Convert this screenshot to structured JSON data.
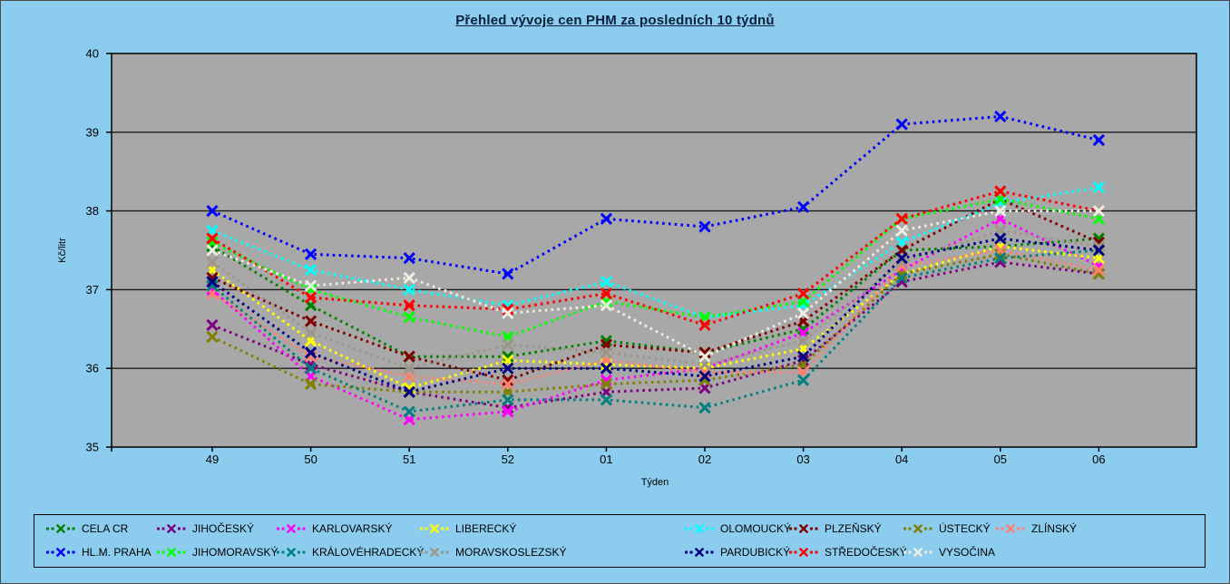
{
  "window": {
    "page_background": "#8CCDEF",
    "frame_color": "#4a4a4a"
  },
  "chart_data": {
    "type": "line",
    "title": "Přehled vývoje cen PHM za posledních 10 týdnů",
    "xlabel": "Týden",
    "ylabel": "Kč/litr",
    "ylim": [
      35,
      40
    ],
    "y_ticks": [
      35,
      36,
      37,
      38,
      39,
      40
    ],
    "x_categories": [
      "49",
      "50",
      "51",
      "52",
      "01",
      "02",
      "03",
      "04",
      "05",
      "06"
    ],
    "grid": true,
    "line_style": "dotted",
    "marker": "x",
    "legend_position": "bottom",
    "plot_background": "#A8A8A8",
    "grid_color": "#1a1a1a",
    "axis_color": "#000000",
    "title_color": "#0a1f3c",
    "text_color": "#000000",
    "series": [
      {
        "name": "CELA CR",
        "color": "#008200",
        "values": [
          37.55,
          36.8,
          36.15,
          36.15,
          36.35,
          36.2,
          36.5,
          37.5,
          37.55,
          37.65
        ]
      },
      {
        "name": "JIHOČESKÝ",
        "color": "#800080",
        "values": [
          36.55,
          36.05,
          35.7,
          35.5,
          35.7,
          35.75,
          36.1,
          37.1,
          37.35,
          37.2
        ]
      },
      {
        "name": "KARLOVARSKÝ",
        "color": "#FF00FF",
        "values": [
          37.0,
          35.9,
          35.35,
          35.45,
          35.85,
          36.0,
          36.45,
          37.25,
          37.9,
          37.3
        ]
      },
      {
        "name": "LIBERECKÝ",
        "color": "#FFFF00",
        "values": [
          37.25,
          36.35,
          35.75,
          36.1,
          36.05,
          36.0,
          36.25,
          37.2,
          37.55,
          37.4
        ]
      },
      {
        "name": "OLOMOUCKÝ",
        "color": "#00FFFF",
        "values": [
          37.75,
          37.25,
          37.0,
          36.8,
          37.1,
          36.65,
          36.8,
          37.6,
          38.1,
          38.3
        ]
      },
      {
        "name": "PLZEŇSKÝ",
        "color": "#800000",
        "values": [
          37.15,
          36.6,
          36.15,
          35.85,
          36.3,
          36.2,
          36.6,
          37.5,
          38.15,
          37.6
        ]
      },
      {
        "name": "ÚSTECKÝ",
        "color": "#808000",
        "values": [
          36.4,
          35.8,
          35.7,
          35.7,
          35.8,
          35.85,
          36.05,
          37.2,
          37.45,
          37.2
        ]
      },
      {
        "name": "ZLÍNSKÝ",
        "color": "#FF8070",
        "values": [
          36.95,
          36.15,
          35.9,
          35.8,
          36.1,
          35.95,
          35.95,
          37.3,
          37.5,
          37.25
        ]
      },
      {
        "name": "HL.M. PRAHA",
        "color": "#0000FF",
        "values": [
          38.0,
          37.45,
          37.4,
          37.2,
          37.9,
          37.8,
          38.05,
          39.1,
          39.2,
          38.9
        ]
      },
      {
        "name": "JIHOMORAVSKÝ",
        "color": "#00FF00",
        "values": [
          37.6,
          37.0,
          36.65,
          36.4,
          36.85,
          36.65,
          36.85,
          37.9,
          38.15,
          37.9
        ]
      },
      {
        "name": "KRÁLOVÉHRADECKÝ",
        "color": "#008080",
        "values": [
          37.05,
          36.0,
          35.45,
          35.6,
          35.6,
          35.5,
          35.85,
          37.15,
          37.4,
          37.5
        ]
      },
      {
        "name": "MORAVSKOSLEZSKÝ",
        "color": "#9E9689",
        "values": [
          37.35,
          36.45,
          36.0,
          36.3,
          36.2,
          36.05,
          36.35,
          37.35,
          37.75,
          37.55
        ]
      },
      {
        "name": "PARDUBICKÝ",
        "color": "#000080",
        "values": [
          37.1,
          36.2,
          35.7,
          36.0,
          36.0,
          35.9,
          36.15,
          37.4,
          37.65,
          37.5
        ]
      },
      {
        "name": "STŘEDOČESKÝ",
        "color": "#FF0000",
        "values": [
          37.65,
          36.9,
          36.8,
          36.75,
          36.95,
          36.55,
          36.95,
          37.9,
          38.25,
          38.0
        ]
      },
      {
        "name": "VYSOČINA",
        "color": "#EDEDE1",
        "values": [
          37.5,
          37.05,
          37.15,
          36.7,
          36.8,
          36.15,
          36.7,
          37.75,
          38.0,
          38.0
        ]
      }
    ]
  }
}
